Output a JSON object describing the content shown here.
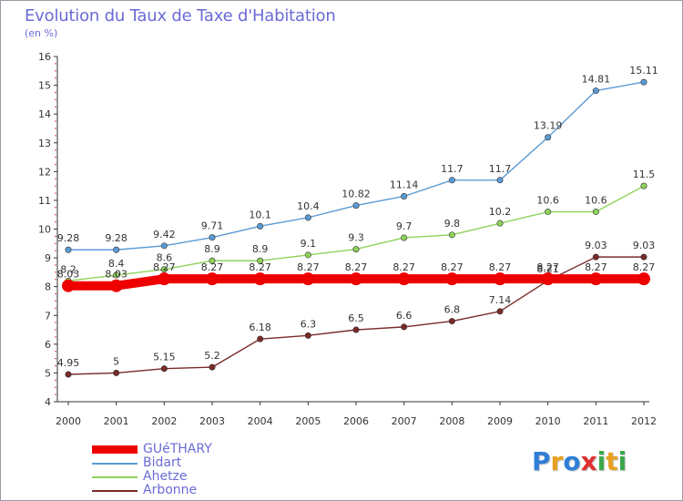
{
  "header": {
    "title": "Evolution du Taux de Taxe d'Habitation",
    "unit": "(en %)"
  },
  "chart_data": {
    "type": "line",
    "title": "Evolution du Taux de Taxe d'Habitation",
    "ylabel": "(en %)",
    "xlabel": "",
    "x": [
      "2000",
      "2001",
      "2002",
      "2003",
      "2004",
      "2005",
      "2006",
      "2007",
      "2008",
      "2009",
      "2010",
      "2011",
      "2012"
    ],
    "ylim": [
      4,
      16
    ],
    "yticks": [
      "4",
      "5",
      "6",
      "7",
      "8",
      "9",
      "10",
      "11",
      "12",
      "13",
      "14",
      "15",
      "16"
    ],
    "grid": false,
    "legend_position": "bottom-left",
    "series": [
      {
        "name": "Bidart",
        "color": "#5b9bd5",
        "values": [
          9.28,
          9.28,
          9.42,
          9.71,
          10.1,
          10.4,
          10.82,
          11.14,
          11.7,
          11.7,
          13.19,
          14.81,
          15.11
        ],
        "labels": [
          "9.28",
          "9.28",
          "9.42",
          "9.71",
          "10.1",
          "10.4",
          "10.82",
          "11.14",
          "11.7",
          "11.7",
          "13.19",
          "14.81",
          "15.11"
        ]
      },
      {
        "name": "Ahetze",
        "color": "#8fd35a",
        "values": [
          8.2,
          8.4,
          8.6,
          8.9,
          8.9,
          9.1,
          9.3,
          9.7,
          9.8,
          10.2,
          10.6,
          10.6,
          11.5
        ],
        "labels": [
          "8.2",
          "8.4",
          "8.6",
          "8.9",
          "8.9",
          "9.1",
          "9.3",
          "9.7",
          "9.8",
          "10.2",
          "10.6",
          "10.6",
          "11.5"
        ]
      },
      {
        "name": "Arbonne",
        "color": "#7a2a2a",
        "values": [
          4.95,
          5,
          5.15,
          5.2,
          6.18,
          6.3,
          6.5,
          6.6,
          6.8,
          7.14,
          8.21,
          9.03,
          9.03
        ],
        "labels": [
          "4.95",
          "5",
          "5.15",
          "5.2",
          "6.18",
          "6.3",
          "6.5",
          "6.6",
          "6.8",
          "7.14",
          "8.21",
          "9.03",
          "9.03"
        ]
      },
      {
        "name": "GUéTHARY",
        "color": "#ee0000",
        "values": [
          8.03,
          8.03,
          8.27,
          8.27,
          8.27,
          8.27,
          8.27,
          8.27,
          8.27,
          8.27,
          8.27,
          8.27,
          8.27
        ],
        "labels": [
          "8.03",
          "8.03",
          "8.27",
          "8.27",
          "8.27",
          "8.27",
          "8.27",
          "8.27",
          "8.27",
          "8.27",
          "8.27",
          "8.27",
          "8.27"
        ]
      }
    ]
  },
  "legend": {
    "items": [
      {
        "label": "GUéTHARY",
        "color": "#ee0000"
      },
      {
        "label": "Bidart",
        "color": "#5b9bd5"
      },
      {
        "label": "Ahetze",
        "color": "#8fd35a"
      },
      {
        "label": "Arbonne",
        "color": "#7a2a2a"
      }
    ]
  },
  "logo": {
    "letters": [
      {
        "char": "P",
        "color": "#2f7fd8"
      },
      {
        "char": "r",
        "color": "#e8a020"
      },
      {
        "char": "o",
        "color": "#2f7fd8"
      },
      {
        "char": "x",
        "color": "#e03030"
      },
      {
        "char": "i",
        "color": "#3aa84a"
      },
      {
        "char": "t",
        "color": "#e8a020"
      },
      {
        "char": "i",
        "color": "#3aa84a"
      }
    ]
  }
}
